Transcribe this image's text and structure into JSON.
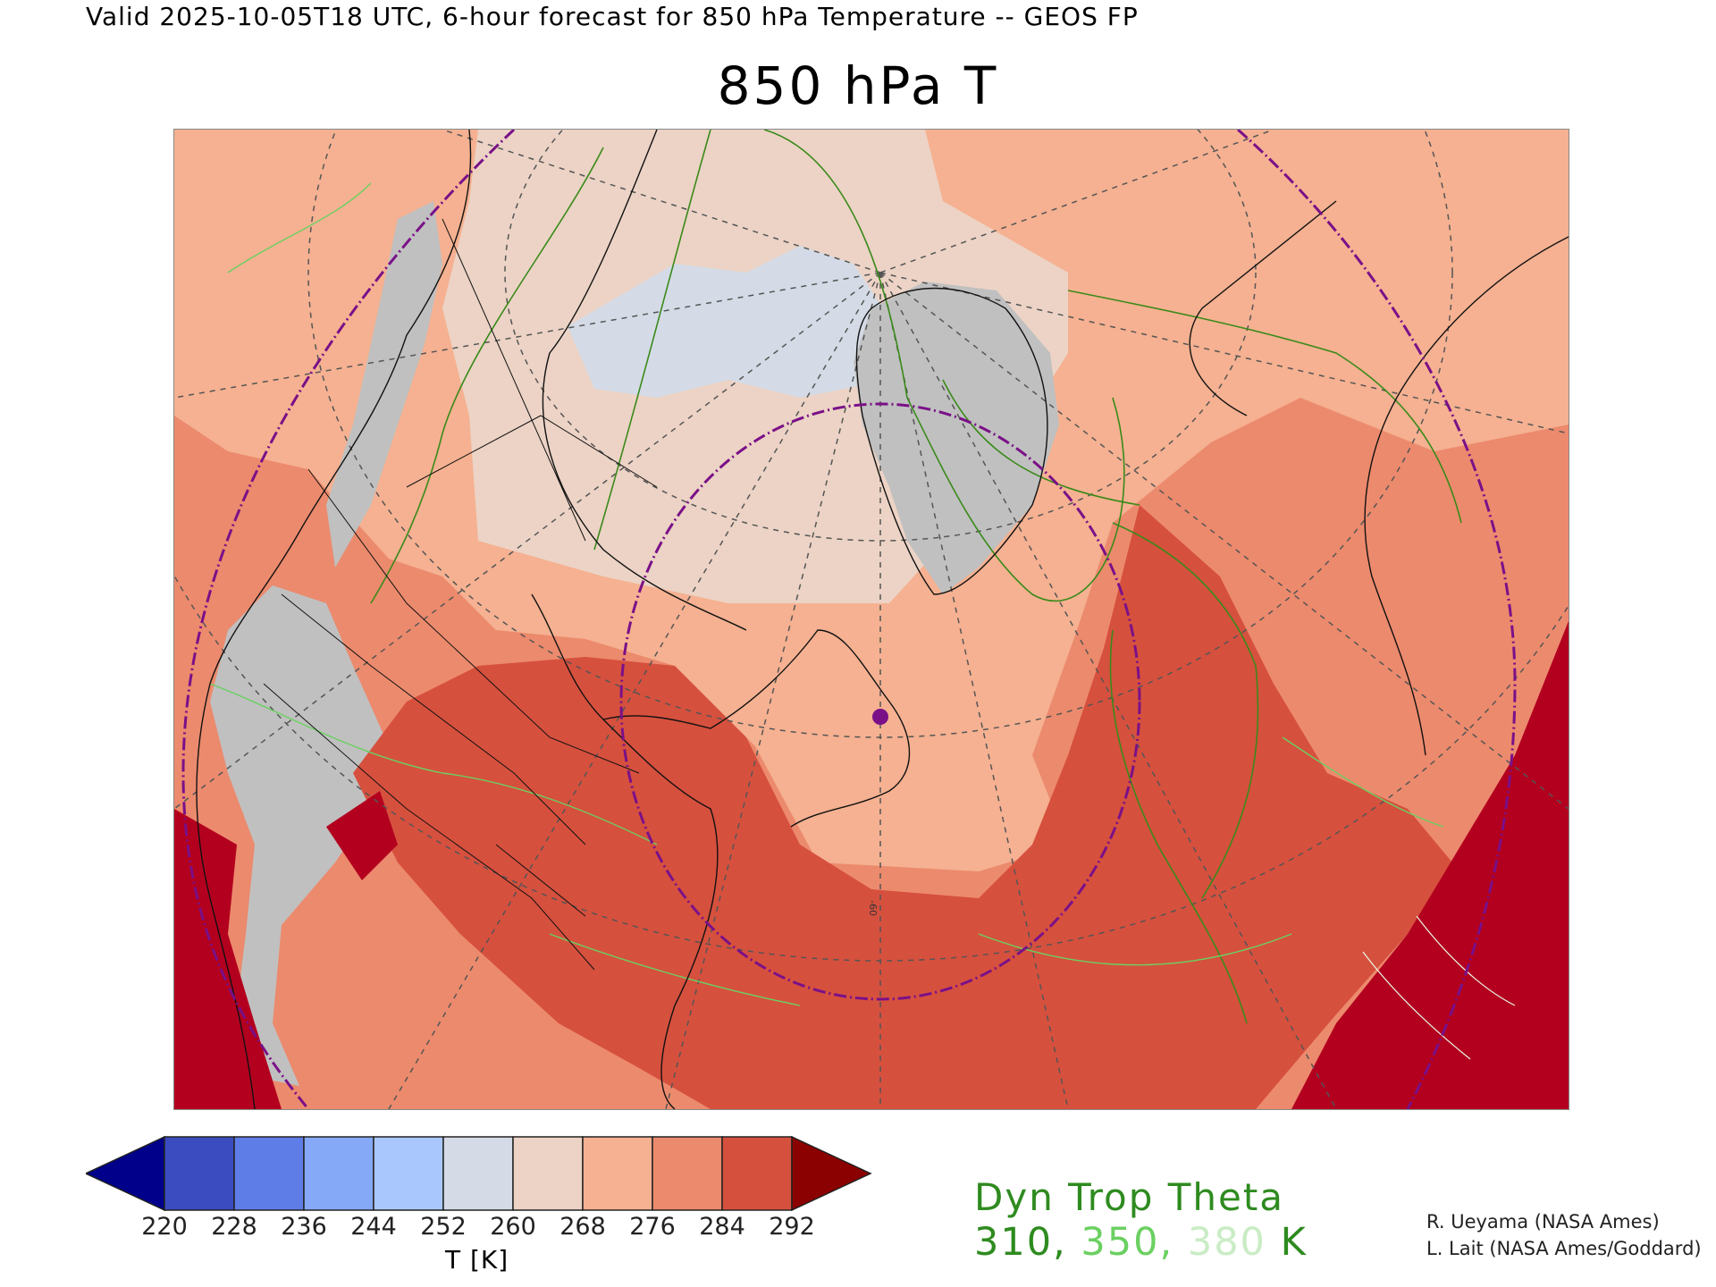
{
  "header": {
    "top_title": "Valid 2025-10-05T18 UTC, 6-hour forecast for 850 hPa Temperature -- GEOS FP",
    "main_title": "850 hPa T"
  },
  "colorbar": {
    "ticks": [
      "220",
      "228",
      "236",
      "244",
      "252",
      "260",
      "268",
      "276",
      "284",
      "292"
    ],
    "units": "T [K]",
    "colors": [
      "#00008b",
      "#3b4cc0",
      "#5f7de6",
      "#86a9f7",
      "#aac7fd",
      "#d4dbe6",
      "#ecd3c5",
      "#f5b191",
      "#ec8a6d",
      "#d6503e",
      "#8b0000"
    ]
  },
  "legend": {
    "title": "Dyn Trop Theta",
    "levels": [
      {
        "value": "310",
        "color": "#2e8b1f"
      },
      {
        "value": "350",
        "color": "#6bd061"
      },
      {
        "value": "380",
        "color": "#c9ecc4"
      }
    ],
    "unit": "K"
  },
  "map": {
    "graticule_label": "-60",
    "colors": {
      "below_260": "#c0c0c0",
      "t260": "#d4dbe6",
      "t268": "#ecd3c5",
      "t276": "#f5b191",
      "t284": "#ec8a6d",
      "t292": "#d6503e",
      "above_292": "#b3001f",
      "ring": "#7a1088",
      "contour": "#3a8a1a"
    }
  },
  "credits": {
    "line1": "R. Ueyama (NASA Ames)",
    "line2": "L. Lait (NASA Ames/Goddard)"
  }
}
